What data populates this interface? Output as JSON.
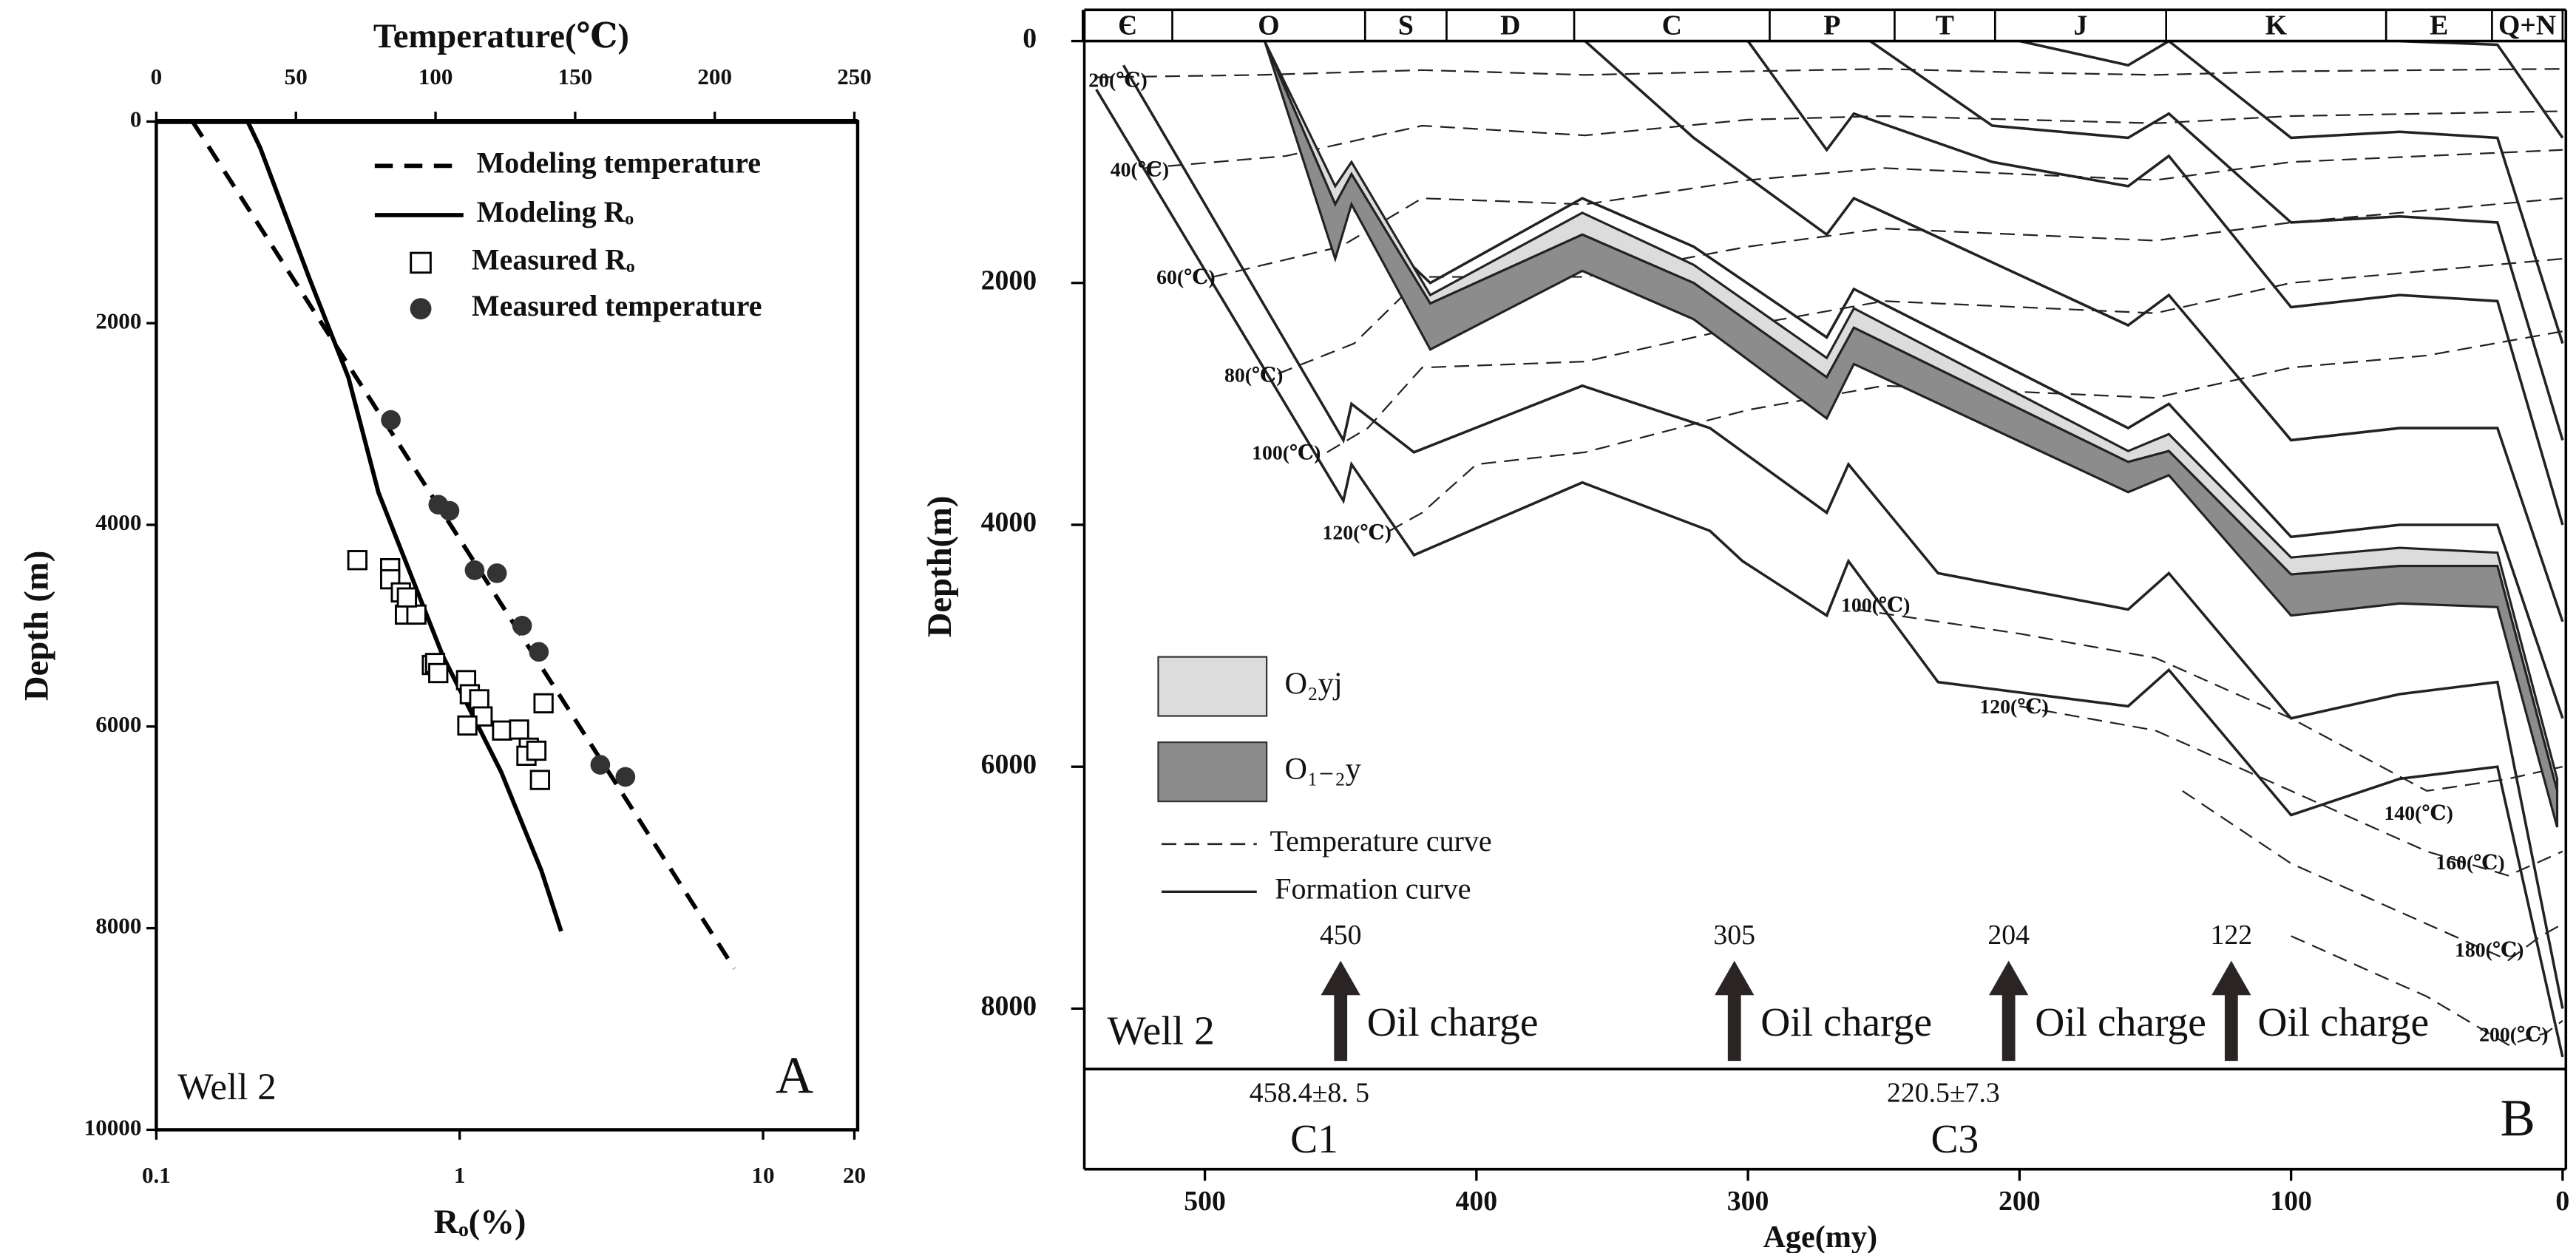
{
  "chart_data": [
    {
      "type": "line",
      "xlabel_top": "Temperature(℃)",
      "xlim_top": [
        0,
        250
      ],
      "xticks_top": [
        0,
        50,
        100,
        150,
        200,
        250
      ],
      "xlabel": "Rₒ(%)",
      "xscale": "log",
      "xlim": [
        0.1,
        20
      ],
      "xticks": [
        0.1,
        1,
        10,
        20
      ],
      "ylabel": "Depth (m)",
      "ylim": [
        0,
        10000
      ],
      "y_inverted": true,
      "yticks": [
        0,
        2000,
        4000,
        6000,
        8000,
        10000
      ],
      "series": [
        {
          "name": "Modeling temperature",
          "axis": "x_top",
          "style": "dashed",
          "color": "#000000",
          "x": [
            13,
            207
          ],
          "values": [
            0,
            8400
          ]
        },
        {
          "name": "Modeling Rₒ",
          "axis": "x",
          "style": "solid",
          "color": "#000000",
          "x": [
            0.2,
            0.22,
            0.32,
            0.43,
            0.54,
            0.88,
            1.37,
            1.86,
            2.16
          ],
          "values": [
            0,
            260,
            1560,
            2540,
            3680,
            5300,
            6450,
            7430,
            8030
          ]
        },
        {
          "name": "Measured Rₒ",
          "axis": "x",
          "marker": "square",
          "color": "#000000",
          "x": [
            0.46,
            0.59,
            0.59,
            0.64,
            0.66,
            0.72,
            0.67,
            0.81,
            0.83,
            0.85,
            1.05,
            1.08,
            1.16,
            1.19,
            1.38,
            1.06,
            1.89,
            1.57,
            1.69,
            1.66,
            1.79,
            1.84
          ],
          "values": [
            4350,
            4430,
            4540,
            4670,
            4890,
            4890,
            4720,
            5390,
            5370,
            5470,
            5540,
            5680,
            5730,
            5900,
            6040,
            5990,
            5770,
            6030,
            6210,
            6290,
            6240,
            6530
          ]
        },
        {
          "name": "Measured temperature",
          "axis": "x_top",
          "marker": "circle",
          "color": "#333333",
          "x": [
            84,
            101,
            105,
            114,
            122,
            131,
            137,
            159,
            168
          ],
          "values": [
            2960,
            3800,
            3860,
            4450,
            4480,
            5000,
            5260,
            6380,
            6500
          ]
        }
      ],
      "annotations": [
        "Well 2",
        "A"
      ]
    },
    {
      "type": "burial",
      "xlabel": "Age(my)",
      "xlim": [
        545,
        0
      ],
      "xticks": [
        500,
        400,
        300,
        200,
        100,
        0
      ],
      "ylabel": "Depth(m)",
      "ylim": [
        0,
        8500
      ],
      "y_inverted": true,
      "yticks": [
        0,
        2000,
        4000,
        6000,
        8000
      ],
      "periods": {
        "names": [
          "Є",
          "O",
          "S",
          "D",
          "C",
          "P",
          "T",
          "J",
          "K",
          "E",
          "Q+N"
        ],
        "boundaries": [
          545,
          512,
          441,
          411,
          364,
          292,
          246,
          209,
          146,
          65,
          26,
          0
        ]
      },
      "units": [
        {
          "name": "O₂yj",
          "color": "#dcdcdc",
          "x": [
            478,
            452,
            446,
            417,
            361,
            320,
            271,
            261,
            160,
            145,
            100,
            60,
            24,
            2
          ],
          "top": [
            0,
            1200,
            1000,
            2100,
            1420,
            1850,
            2620,
            2210,
            3390,
            3250,
            4270,
            4190,
            4230,
            6100
          ],
          "base": [
            0,
            1350,
            1100,
            2170,
            1600,
            2000,
            2780,
            2370,
            3480,
            3390,
            4410,
            4340,
            4340,
            6200
          ]
        },
        {
          "name": "O₁₋₂y",
          "color": "#8c8c8c",
          "x": [
            478,
            452,
            446,
            417,
            361,
            320,
            271,
            261,
            160,
            145,
            100,
            60,
            24,
            2
          ],
          "top": [
            0,
            1350,
            1100,
            2170,
            1600,
            2000,
            2780,
            2370,
            3480,
            3390,
            4410,
            4340,
            4340,
            6200
          ],
          "base": [
            0,
            1800,
            1350,
            2550,
            1900,
            2300,
            3120,
            2670,
            3730,
            3590,
            4750,
            4650,
            4680,
            6500
          ]
        }
      ],
      "formations": [
        {
          "x": [
            540,
            449,
            446,
            423,
            361,
            314,
            302,
            271,
            263,
            230,
            160,
            145,
            100,
            60,
            24,
            0
          ],
          "values": [
            400,
            3800,
            3500,
            4250,
            3650,
            4050,
            4300,
            4750,
            4300,
            5300,
            5500,
            5200,
            6400,
            6100,
            6000,
            8400
          ]
        },
        {
          "x": [
            530,
            449,
            446,
            423,
            361,
            314,
            271,
            263,
            230,
            160,
            145,
            100,
            60,
            24,
            0
          ],
          "values": [
            200,
            3300,
            3000,
            3400,
            2850,
            3200,
            3900,
            3500,
            4400,
            4700,
            4400,
            5600,
            5400,
            5300,
            8000
          ]
        },
        {
          "x": [
            445,
            417,
            361,
            320,
            271,
            261,
            160,
            145,
            100,
            60,
            24,
            0
          ],
          "values": [
            1400,
            2000,
            1300,
            1700,
            2450,
            2050,
            3200,
            3000,
            4100,
            4000,
            4000,
            5600
          ]
        },
        {
          "x": [
            360,
            320,
            271,
            261,
            160,
            145,
            100,
            60,
            24,
            0
          ],
          "values": [
            0,
            800,
            1600,
            1300,
            2350,
            2100,
            3300,
            3200,
            3200,
            4800
          ]
        },
        {
          "x": [
            300,
            271,
            261,
            210,
            160,
            145,
            100,
            60,
            24,
            0
          ],
          "values": [
            0,
            900,
            600,
            1000,
            1200,
            950,
            2200,
            2100,
            2150,
            4000
          ]
        },
        {
          "x": [
            255,
            210,
            160,
            145,
            100,
            60,
            24,
            0
          ],
          "values": [
            0,
            700,
            800,
            600,
            1500,
            1450,
            1500,
            3300
          ]
        },
        {
          "x": [
            200,
            160,
            145,
            100,
            60,
            24,
            0
          ],
          "values": [
            0,
            200,
            0,
            800,
            750,
            800,
            2500
          ]
        },
        {
          "x": [
            60,
            24,
            0
          ],
          "values": [
            0,
            30,
            800
          ]
        }
      ],
      "isotherms": [
        {
          "x": [
            540,
            480,
            420,
            360,
            300,
            250,
            200,
            150,
            100,
            50,
            0
          ],
          "values": [
            300,
            280,
            240,
            280,
            250,
            230,
            260,
            280,
            250,
            240,
            230
          ]
        },
        {
          "x": [
            522,
            470,
            420,
            360,
            300,
            250,
            200,
            150,
            100,
            50,
            0
          ],
          "values": [
            1050,
            950,
            700,
            780,
            650,
            620,
            650,
            680,
            620,
            600,
            580
          ]
        },
        {
          "x": [
            497,
            450,
            420,
            360,
            300,
            250,
            200,
            150,
            100,
            50,
            0
          ],
          "values": [
            1950,
            1700,
            1300,
            1350,
            1150,
            1050,
            1100,
            1150,
            1000,
            950,
            900
          ]
        },
        {
          "x": [
            473,
            445,
            420,
            360,
            300,
            250,
            200,
            150,
            100,
            50,
            0
          ],
          "values": [
            2750,
            2500,
            1950,
            1950,
            1700,
            1550,
            1600,
            1650,
            1500,
            1400,
            1300
          ]
        },
        {
          "x": [
            455,
            440,
            420,
            360,
            300,
            250,
            200,
            150,
            100,
            50,
            0
          ],
          "values": [
            3400,
            3200,
            2700,
            2650,
            2350,
            2150,
            2200,
            2250,
            2000,
            1900,
            1800
          ]
        },
        {
          "x": [
            432,
            420,
            400,
            360,
            300,
            250,
            200,
            150,
            100,
            50,
            0
          ],
          "values": [
            4050,
            3900,
            3500,
            3400,
            3050,
            2850,
            2900,
            2950,
            2700,
            2600,
            2400
          ]
        },
        {
          "x": [
            260,
            200,
            150,
            100,
            50,
            20,
            0
          ],
          "values": [
            4700,
            4900,
            5100,
            5600,
            6200,
            6100,
            6000
          ]
        },
        {
          "x": [
            200,
            150,
            100,
            50,
            20,
            10,
            0
          ],
          "values": [
            5500,
            5700,
            6200,
            6700,
            6900,
            6800,
            6700
          ]
        },
        {
          "x": [
            140,
            100,
            50,
            20,
            8,
            0
          ],
          "values": [
            6200,
            6800,
            7300,
            7600,
            7400,
            7300
          ]
        },
        {
          "x": [
            100,
            50,
            20,
            6,
            0
          ],
          "values": [
            7400,
            7900,
            8300,
            8200,
            8100
          ]
        }
      ],
      "isotherm_labels": [
        {
          "text": "20(℃)",
          "x": 532,
          "y": 340
        },
        {
          "text": "40(℃)",
          "x": 524,
          "y": 1080
        },
        {
          "text": "60(℃)",
          "x": 507,
          "y": 1970
        },
        {
          "text": "80(℃)",
          "x": 482,
          "y": 2780
        },
        {
          "text": "100(℃)",
          "x": 470,
          "y": 3420
        },
        {
          "text": "120(℃)",
          "x": 444,
          "y": 4080
        },
        {
          "text": "100(℃)",
          "x": 253,
          "y": 4680
        },
        {
          "text": "120(℃)",
          "x": 202,
          "y": 5520
        },
        {
          "text": "140(℃)",
          "x": 53,
          "y": 6400
        },
        {
          "text": "160(℃)",
          "x": 34,
          "y": 6810
        },
        {
          "text": "180(℃)",
          "x": 27,
          "y": 7530
        },
        {
          "text": "200(℃)",
          "x": 18,
          "y": 8230
        }
      ],
      "line_legend": {
        "temperature": "Temperature curve",
        "formation": "Formation curve"
      },
      "oil_charges": [
        {
          "age": 450,
          "label": "Oil charge"
        },
        {
          "age": 305,
          "label": "Oil charge"
        },
        {
          "age": 204,
          "label": "Oil charge"
        },
        {
          "age": 122,
          "label": "Oil charge"
        }
      ],
      "dates": [
        {
          "label": "458.4±8. 5",
          "name": "C1"
        },
        {
          "label": "220.5±7.3",
          "name": "C3"
        }
      ],
      "annotations": [
        "Well 2",
        "B"
      ]
    }
  ]
}
